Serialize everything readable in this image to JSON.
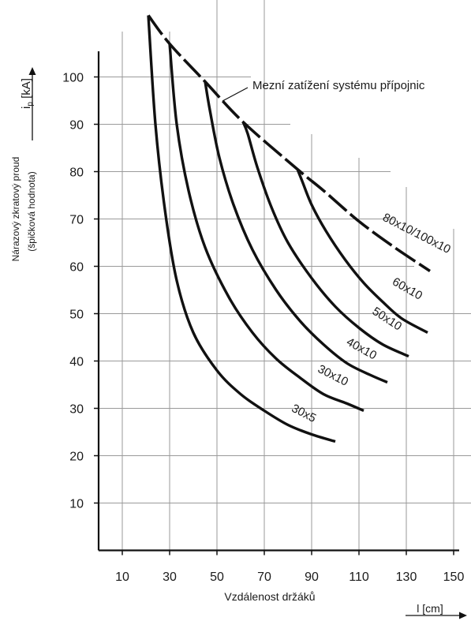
{
  "chart_data": {
    "type": "line",
    "ylabel_main": "Nárazový zkratový proud",
    "ylabel_sub": "(špičková hodnota)",
    "yunit_symbol": "i",
    "yunit_subscript": "p",
    "yunit_rest": "[kA]",
    "xlabel": "Vzdálenost držáků",
    "xunit": "l [cm]",
    "x_ticks": [
      "10",
      "30",
      "50",
      "70",
      "90",
      "110",
      "130",
      "150"
    ],
    "y_ticks": [
      "10",
      "20",
      "30",
      "40",
      "50",
      "60",
      "70",
      "80",
      "90",
      "100"
    ],
    "xlim": [
      0,
      155
    ],
    "ylim": [
      0,
      113
    ],
    "grid": true,
    "limit_curve": {
      "label": "Mezní zatížení systému přípojnic",
      "style": "dashed",
      "points": [
        [
          21,
          113
        ],
        [
          30,
          107
        ],
        [
          45,
          99
        ],
        [
          61,
          90.5
        ],
        [
          84,
          80.5
        ],
        [
          95,
          76
        ],
        [
          110,
          69.5
        ],
        [
          125,
          64
        ],
        [
          140,
          59
        ]
      ]
    },
    "series": [
      {
        "name": "30x5",
        "points": [
          [
            21,
            113
          ],
          [
            24,
            90
          ],
          [
            28,
            72
          ],
          [
            33,
            57
          ],
          [
            40,
            46
          ],
          [
            50,
            38
          ],
          [
            60,
            33
          ],
          [
            70,
            29.5
          ],
          [
            80,
            26.5
          ],
          [
            90,
            24.5
          ],
          [
            100,
            23
          ]
        ]
      },
      {
        "name": "30x10",
        "points": [
          [
            30,
            107
          ],
          [
            33,
            90
          ],
          [
            38,
            76
          ],
          [
            45,
            64
          ],
          [
            55,
            53.5
          ],
          [
            65,
            46
          ],
          [
            75,
            40.5
          ],
          [
            85,
            36.5
          ],
          [
            95,
            33
          ],
          [
            105,
            31
          ],
          [
            112,
            29.5
          ]
        ]
      },
      {
        "name": "40x10",
        "points": [
          [
            45,
            99
          ],
          [
            47,
            93
          ],
          [
            51,
            83
          ],
          [
            57,
            73
          ],
          [
            65,
            63.5
          ],
          [
            75,
            55
          ],
          [
            85,
            48.5
          ],
          [
            95,
            43.5
          ],
          [
            105,
            39.5
          ],
          [
            115,
            37
          ],
          [
            122,
            35.5
          ]
        ]
      },
      {
        "name": "50x10",
        "points": [
          [
            61,
            90.5
          ],
          [
            63,
            88
          ],
          [
            67,
            81
          ],
          [
            73,
            72.5
          ],
          [
            80,
            65
          ],
          [
            90,
            57.5
          ],
          [
            100,
            51.5
          ],
          [
            110,
            47
          ],
          [
            120,
            43.5
          ],
          [
            131,
            41
          ]
        ]
      },
      {
        "name": "60x10",
        "points": [
          [
            84,
            80.5
          ],
          [
            86,
            78
          ],
          [
            90,
            73
          ],
          [
            96,
            67.5
          ],
          [
            104,
            61.5
          ],
          [
            112,
            56.5
          ],
          [
            120,
            52.5
          ],
          [
            128,
            49
          ],
          [
            139,
            46
          ]
        ]
      }
    ]
  }
}
